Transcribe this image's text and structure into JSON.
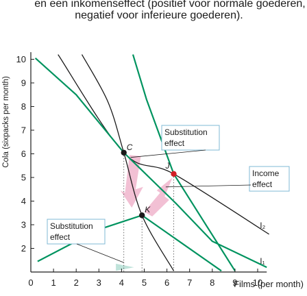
{
  "chart_data": {
    "type": "line",
    "title": "en een inkomenseffect (positief voor normale goederen,",
    "subtitle": "negatief voor inferieure goederen).",
    "xlabel": "Films (per month)",
    "ylabel": "Cola (sixpacks per month)",
    "x_ticks": [
      "0",
      "1",
      "2",
      "3",
      "4",
      "5",
      "6",
      "7",
      "8",
      "9",
      "10"
    ],
    "y_ticks": [
      "2",
      "3",
      "4",
      "5",
      "6",
      "7",
      "8",
      "9",
      "10"
    ],
    "xlim": [
      0,
      10
    ],
    "ylim": [
      1,
      10
    ],
    "grid": false,
    "points": [
      {
        "label": "C",
        "x": 4.1,
        "y": 6.05
      },
      {
        "label": "J",
        "x": 6.3,
        "y": 5.15
      },
      {
        "label": "K",
        "x": 4.9,
        "y": 3.4
      }
    ],
    "series": [
      {
        "label": "I₁",
        "points": [
          [
            2.25,
            10.2
          ],
          [
            3.4,
            8.2
          ],
          [
            4.1,
            6.05
          ],
          [
            4.9,
            3.4
          ],
          [
            6.3,
            1.05
          ]
        ]
      },
      {
        "label": "I₂",
        "points": [
          [
            1.2,
            10.2
          ],
          [
            4.1,
            6.05
          ],
          [
            6.3,
            5.15
          ],
          [
            10.5,
            2.6
          ]
        ]
      },
      {
        "label": "",
        "points": [
          [
            4.5,
            10.2
          ],
          [
            5.1,
            8.3
          ],
          [
            6.3,
            5.15
          ],
          [
            9.0,
            1.05
          ]
        ]
      },
      {
        "label": "",
        "points": [
          [
            0.3,
            1.45
          ],
          [
            3.0,
            2.8
          ],
          [
            4.9,
            3.4
          ],
          [
            8.4,
            1.05
          ]
        ]
      },
      {
        "label": "",
        "points": [
          [
            0.2,
            10.05
          ],
          [
            2.0,
            8.5
          ],
          [
            4.1,
            6.05
          ],
          [
            6.4,
            3.9
          ],
          [
            8.0,
            2.3
          ],
          [
            10.4,
            1.2
          ]
        ]
      }
    ],
    "annotations": [
      {
        "text_lines": [
          "Substitution",
          "effect"
        ]
      },
      {
        "text_lines": [
          "Income",
          "effect"
        ]
      },
      {
        "text_lines": [
          "Substitution",
          "effect"
        ]
      }
    ],
    "colors": {
      "green": "#00935f",
      "black": "#1a1a1a",
      "red": "#d21f26",
      "pink": "#f2c0d4",
      "teal_arrow": "#bfe3da",
      "box_border": "#7fb8d6"
    }
  }
}
